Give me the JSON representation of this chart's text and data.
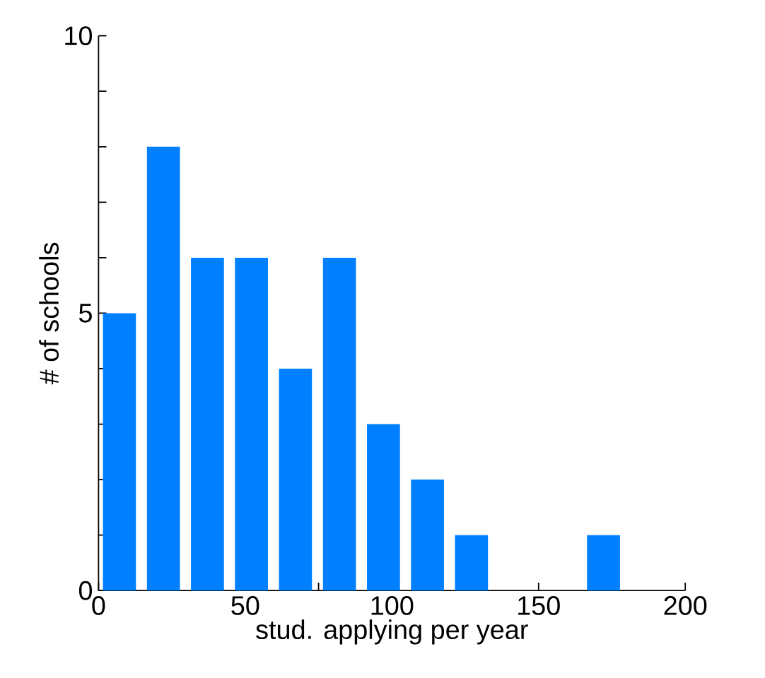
{
  "chart_data": {
    "type": "histogram",
    "xlabel": "stud. applying per year",
    "ylabel": "# of schools",
    "bins": [
      0,
      15,
      30,
      45,
      60,
      75,
      90,
      105,
      120,
      135,
      150,
      165,
      180
    ],
    "values": [
      5,
      8,
      6,
      6,
      4,
      6,
      3,
      2,
      1,
      0,
      0,
      1
    ],
    "color": "#0080ff",
    "xlim": [
      0,
      200
    ],
    "ylim": [
      0,
      10
    ],
    "xticks": [
      0,
      {
        "value": 25,
        "label": null
      },
      50,
      {
        "value": 75,
        "label": null
      },
      100,
      {
        "value": 125,
        "label": null
      },
      150,
      {
        "value": 175,
        "label": null
      },
      200
    ],
    "yticks": [
      0,
      {
        "value": 1,
        "label": null
      },
      {
        "value": 2,
        "label": null
      },
      {
        "value": 3,
        "label": null
      },
      {
        "value": 4,
        "label": null
      },
      5,
      {
        "value": 6,
        "label": null
      },
      {
        "value": 7,
        "label": null
      },
      {
        "value": 8,
        "label": null
      },
      {
        "value": 9,
        "label": null
      },
      10
    ],
    "grid": false
  }
}
